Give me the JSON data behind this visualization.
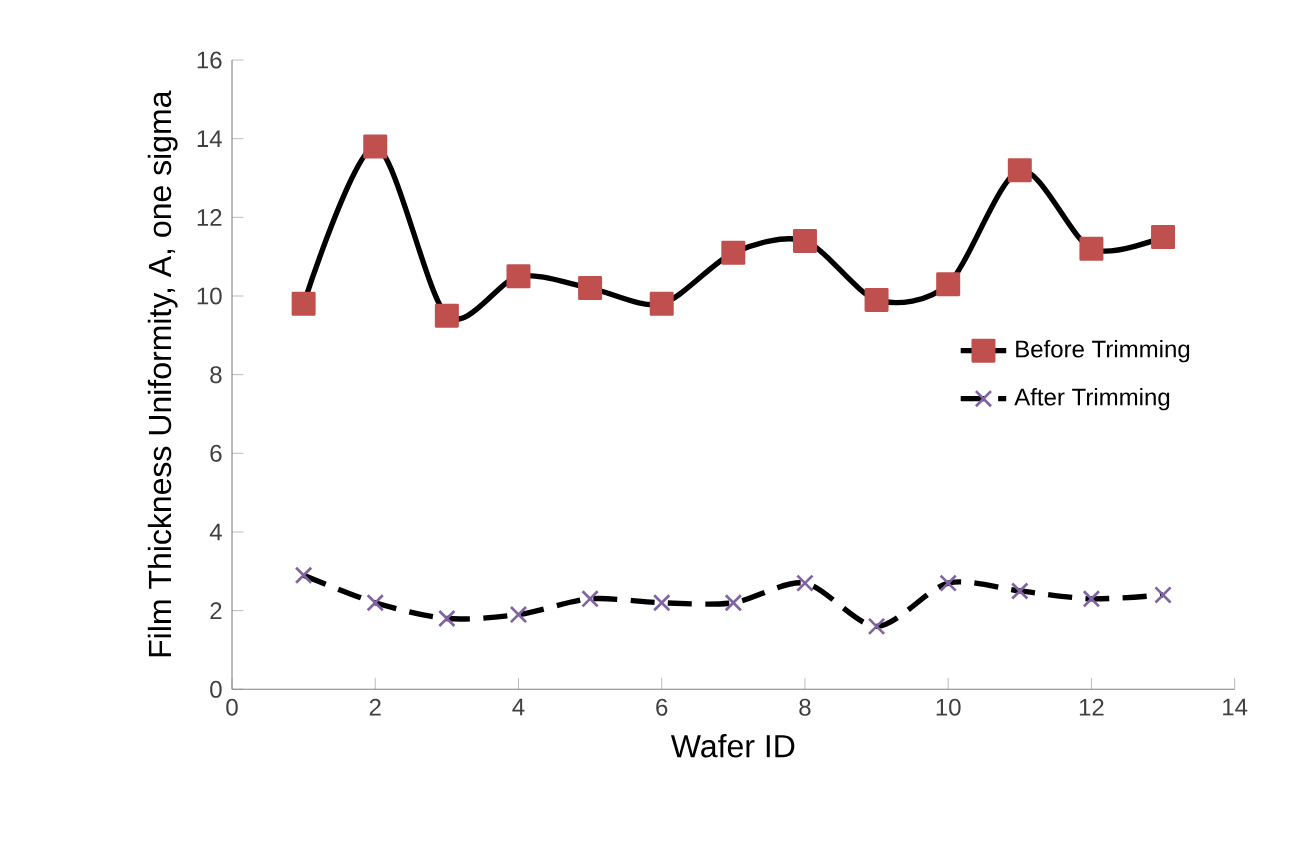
{
  "chart_data": {
    "type": "line",
    "xlabel": "Wafer ID",
    "ylabel": "Film Thickness Uniformity, A, one sigma",
    "x": [
      1,
      2,
      3,
      4,
      5,
      6,
      7,
      8,
      9,
      10,
      11,
      12,
      13
    ],
    "series": [
      {
        "name": "Before Trimming",
        "color": "#c0504d",
        "marker": "square",
        "line_style": "solid",
        "values": [
          9.8,
          13.8,
          9.5,
          10.5,
          10.2,
          9.8,
          11.1,
          11.4,
          9.9,
          10.3,
          13.2,
          11.2,
          11.5
        ]
      },
      {
        "name": "After Trimming",
        "color": "#8064a2",
        "marker": "cross",
        "line_style": "dashed",
        "values": [
          2.9,
          2.2,
          1.8,
          1.9,
          2.3,
          2.2,
          2.2,
          2.7,
          1.6,
          2.7,
          2.5,
          2.3,
          2.4
        ]
      }
    ],
    "xlim": [
      0,
      14
    ],
    "xticks": [
      0,
      2,
      4,
      6,
      8,
      10,
      12,
      14
    ],
    "ylim": [
      0,
      16
    ],
    "yticks": [
      0,
      2,
      4,
      6,
      8,
      10,
      12,
      14,
      16
    ],
    "grid": false,
    "legend": "right"
  }
}
